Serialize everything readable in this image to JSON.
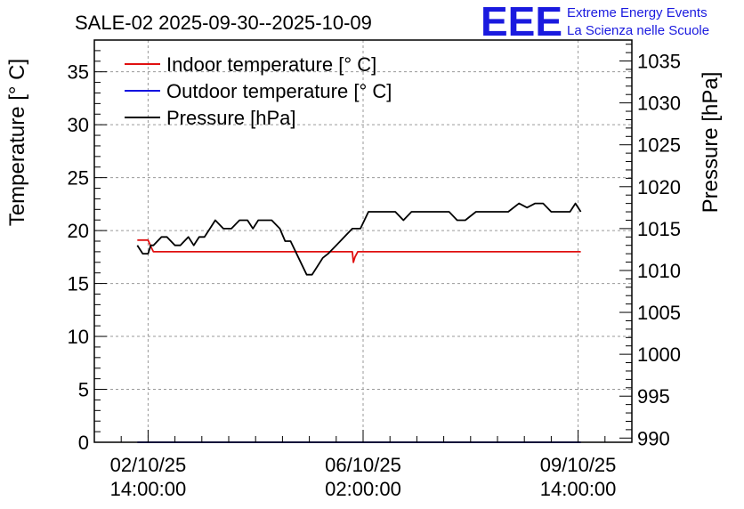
{
  "chart_data": {
    "type": "line",
    "title": "SALE-02 2025-09-30--2025-10-09",
    "ylabel_left": "Temperature [° C]",
    "ylabel_right": "Pressure [hPa]",
    "ylim_left": [
      0,
      38
    ],
    "ylim_right": [
      989.5,
      1037.5
    ],
    "yticks_left": [
      0,
      5,
      10,
      15,
      20,
      25,
      30,
      35
    ],
    "yticks_right": [
      990,
      995,
      1000,
      1005,
      1010,
      1015,
      1020,
      1025,
      1030,
      1035
    ],
    "x_range_days": [
      0,
      10
    ],
    "x_tick_labels": [
      {
        "x": 1.0,
        "line1": "02/10/25",
        "line2": "14:00:00"
      },
      {
        "x": 5.0,
        "line1": "06/10/25",
        "line2": "02:00:00"
      },
      {
        "x": 9.0,
        "line1": "09/10/25",
        "line2": "14:00:00"
      }
    ],
    "x_grid": [
      1.0,
      5.0,
      9.0
    ],
    "grid": true,
    "legend": [
      "Indoor temperature [° C]",
      "Outdoor temperature [° C]",
      "Pressure [hPa]"
    ],
    "series": [
      {
        "name": "Indoor temperature [° C]",
        "axis": "left",
        "color": "#e01010",
        "x": [
          0.8,
          1.0,
          1.05,
          1.1,
          2.0,
          3.0,
          4.0,
          4.8,
          4.82,
          4.85,
          4.9,
          5.5,
          6.0,
          7.0,
          8.0,
          9.0,
          9.05
        ],
        "y": [
          19.1,
          19.1,
          18.5,
          18.0,
          18.0,
          18.0,
          18.0,
          18.0,
          17.0,
          17.5,
          18.0,
          18.0,
          18.0,
          18.0,
          18.0,
          18.0,
          18.0
        ]
      },
      {
        "name": "Outdoor temperature [° C]",
        "axis": "left",
        "color": "#1010e0",
        "x": [
          0.8,
          9.05
        ],
        "y": [
          0.0,
          0.0
        ]
      },
      {
        "name": "Pressure [hPa]",
        "axis": "right",
        "color": "#000000",
        "x": [
          0.8,
          0.9,
          1.0,
          1.05,
          1.1,
          1.25,
          1.35,
          1.5,
          1.6,
          1.75,
          1.85,
          1.95,
          2.05,
          2.15,
          2.25,
          2.4,
          2.55,
          2.7,
          2.85,
          2.95,
          3.05,
          3.15,
          3.3,
          3.45,
          3.55,
          3.65,
          3.8,
          3.95,
          4.05,
          4.15,
          4.25,
          4.35,
          4.5,
          4.65,
          4.8,
          4.95,
          5.1,
          5.3,
          5.45,
          5.6,
          5.75,
          5.9,
          6.05,
          6.2,
          6.35,
          6.5,
          6.6,
          6.75,
          6.9,
          7.1,
          7.3,
          7.5,
          7.7,
          7.9,
          8.05,
          8.2,
          8.35,
          8.5,
          8.7,
          8.85,
          8.95,
          9.05
        ],
        "y": [
          1013,
          1012,
          1012,
          1013,
          1013,
          1014,
          1014,
          1013,
          1013,
          1014,
          1013,
          1014,
          1014,
          1015,
          1016,
          1015,
          1015,
          1016,
          1016,
          1015,
          1016,
          1016,
          1016,
          1015,
          1013.5,
          1013.5,
          1011.5,
          1009.5,
          1009.5,
          1010.5,
          1011.5,
          1012,
          1013,
          1014,
          1015,
          1015,
          1017,
          1017,
          1017,
          1017,
          1016,
          1017,
          1017,
          1017,
          1017,
          1017,
          1017,
          1016,
          1016,
          1017,
          1017,
          1017,
          1017,
          1018,
          1017.5,
          1018,
          1018,
          1017,
          1017,
          1017,
          1018,
          1017
        ]
      }
    ]
  },
  "logo": {
    "letters": "EEE",
    "line1": "Extreme Energy Events",
    "line2": "La Scienza nelle Scuole"
  }
}
